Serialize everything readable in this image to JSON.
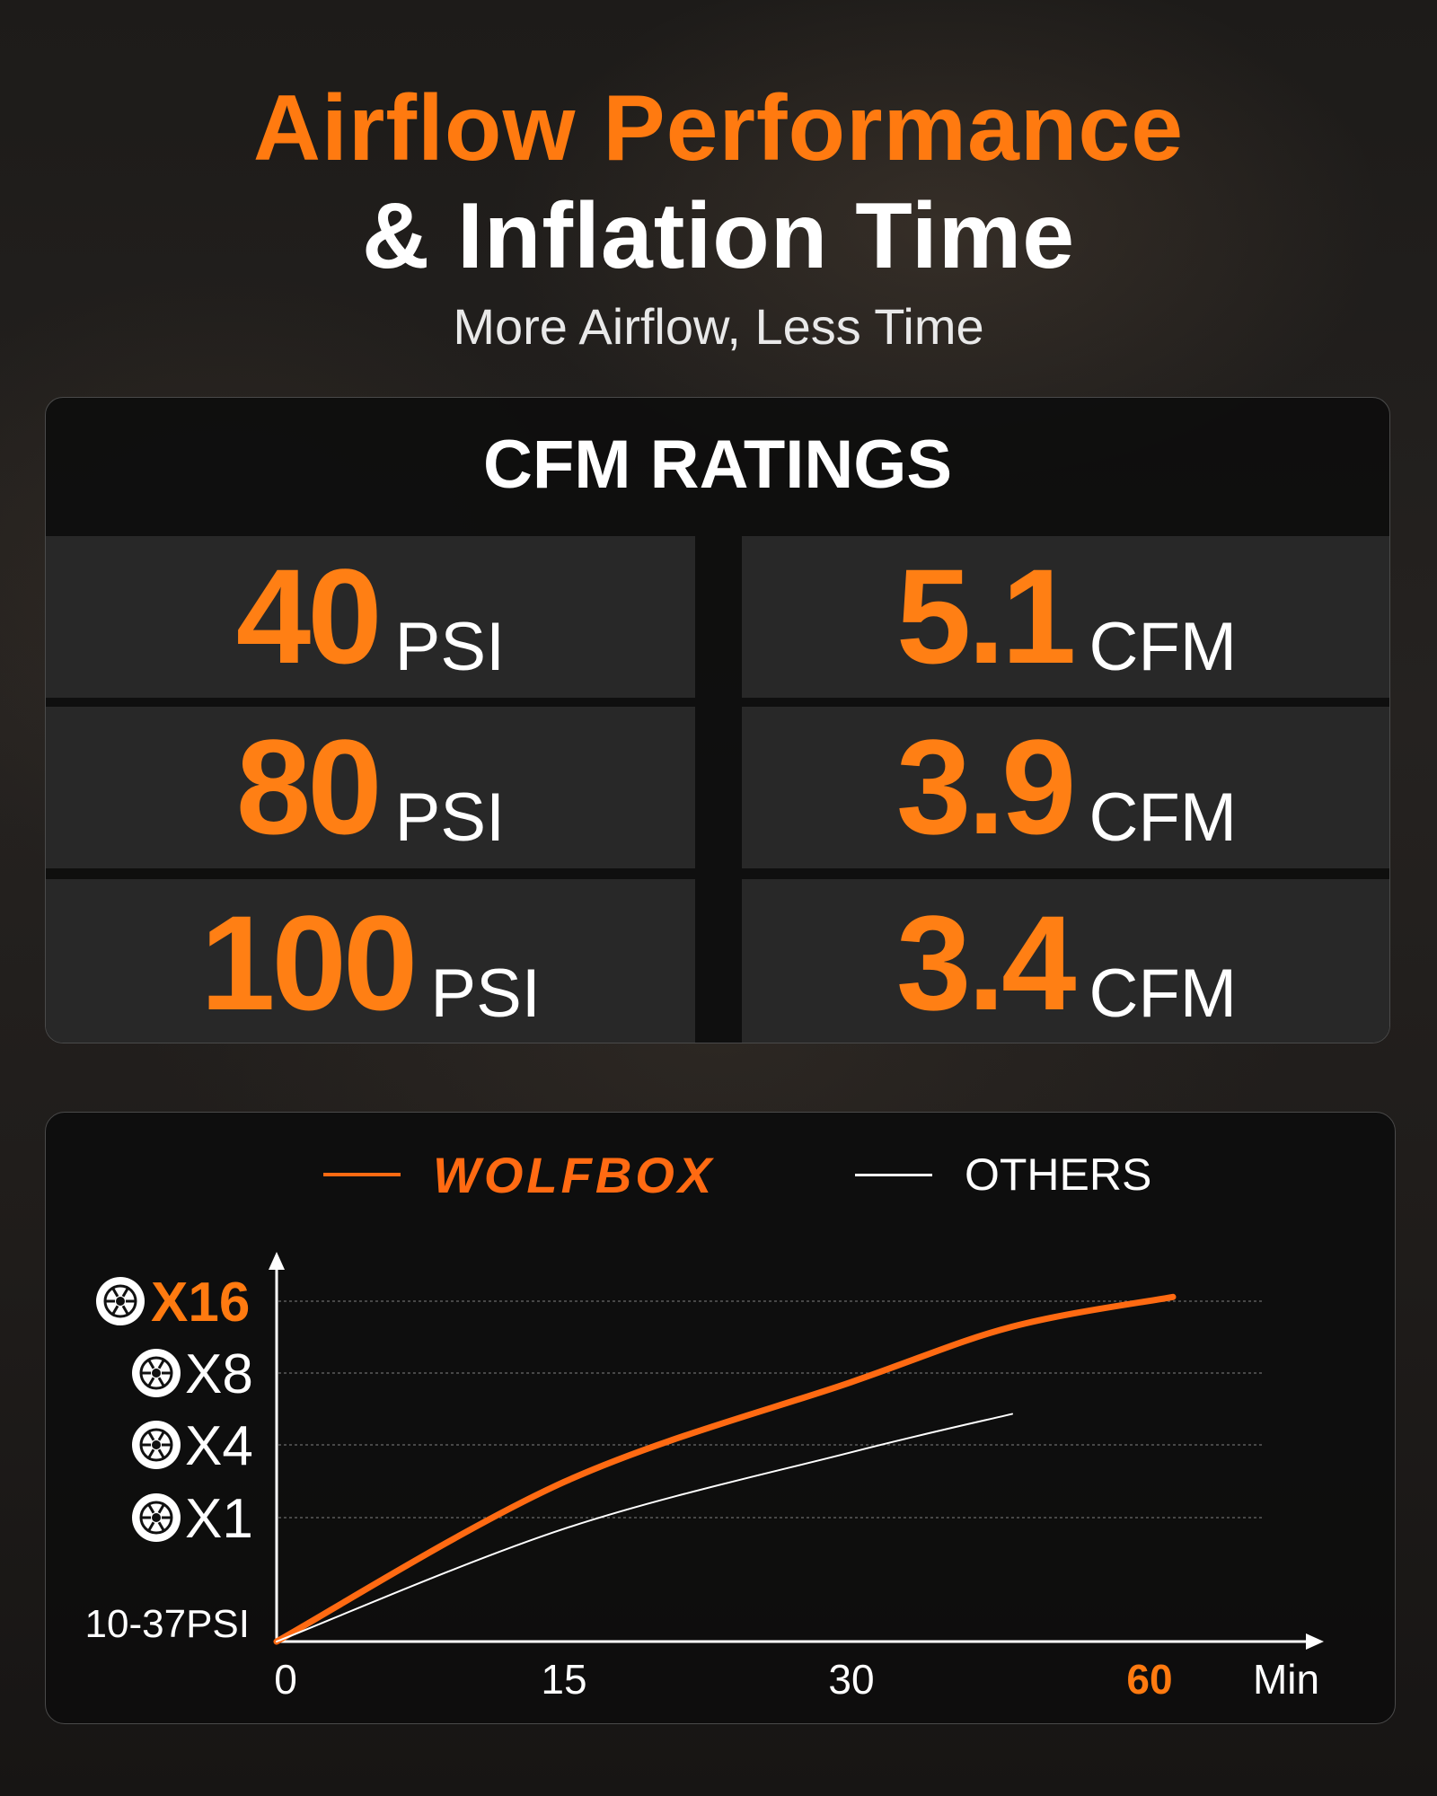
{
  "header": {
    "title_line1": "Airflow Performance",
    "title_line2": "& Inflation Time",
    "subtitle": "More Airflow, Less Time"
  },
  "cfm_ratings": {
    "title": "CFM RATINGS",
    "rows": [
      {
        "psi": "40",
        "psi_unit": "PSI",
        "cfm": "5.1",
        "cfm_unit": "CFM"
      },
      {
        "psi": "80",
        "psi_unit": "PSI",
        "cfm": "3.9",
        "cfm_unit": "CFM"
      },
      {
        "psi": "100",
        "psi_unit": "PSI",
        "cfm": "3.4",
        "cfm_unit": "CFM"
      }
    ]
  },
  "colors": {
    "accent": "#ff7a10",
    "wolfbox_line": "#ff6a12",
    "others_line": "#ffffff",
    "cell_bg": "#282828",
    "panel_bg": "#0e0e0e"
  },
  "chart_data": {
    "type": "line",
    "legend": [
      {
        "name": "WOLFBOX",
        "color": "#ff6a12"
      },
      {
        "name": "OTHERS",
        "color": "#ffffff"
      }
    ],
    "legend_position": "top-center",
    "xlabel": "Min",
    "x_ticks": [
      "0",
      "15",
      "30",
      "60"
    ],
    "x_tick_highlight": "60",
    "y_ticks": [
      "10-37PSI",
      "X1",
      "X4",
      "X8",
      "X16"
    ],
    "y_tick_highlight": "X16",
    "y_tick_icon": "tire-icon",
    "grid": "dashed horizontal at tire ticks",
    "series": [
      {
        "name": "WOLFBOX",
        "x": [
          0,
          15,
          30,
          45,
          60
        ],
        "y": [
          0,
          7.5,
          12.2,
          14.8,
          16.2
        ]
      },
      {
        "name": "OTHERS",
        "x": [
          0,
          15,
          30,
          45
        ],
        "y": [
          0,
          5.3,
          8.9,
          10.7
        ]
      }
    ]
  }
}
